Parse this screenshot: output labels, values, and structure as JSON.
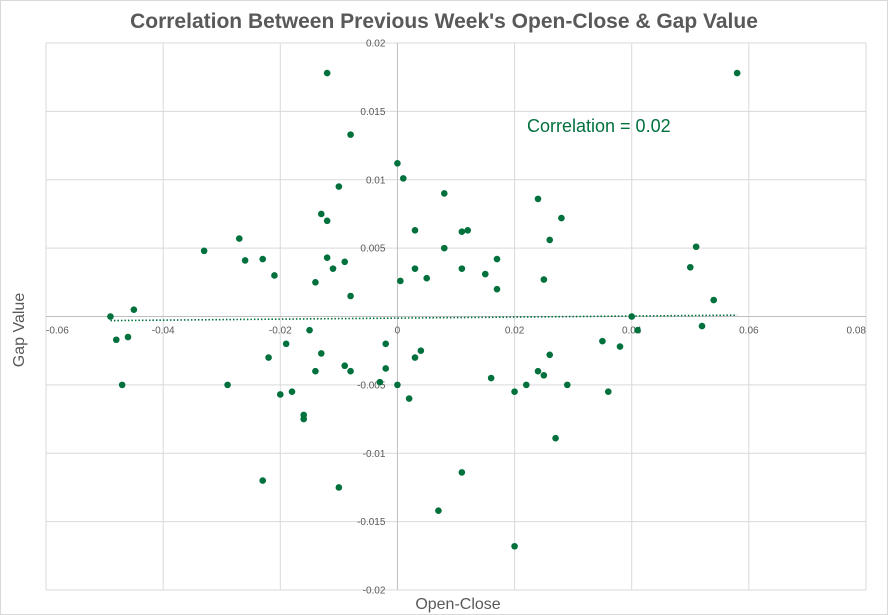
{
  "chart_data": {
    "type": "scatter",
    "title": "Correlation Between Previous Week's Open-Close & Gap Value",
    "xlabel": "Open-Close",
    "ylabel": "Gap Value",
    "xlim": [
      -0.06,
      0.08
    ],
    "ylim": [
      -0.02,
      0.02
    ],
    "x_ticks": [
      -0.06,
      -0.04,
      -0.02,
      0,
      0.02,
      0.04,
      0.06,
      0.08
    ],
    "y_ticks": [
      -0.02,
      -0.015,
      -0.01,
      -0.005,
      0,
      0.005,
      0.01,
      0.015,
      0.02
    ],
    "x_tick_labels": [
      "-0.06",
      "-0.04",
      "-0.02",
      "0",
      "0.02",
      "0.04",
      "0.06",
      "0.08"
    ],
    "y_tick_labels": [
      "-0.02",
      "-0.015",
      "-0.01",
      "-0.005",
      "0",
      "0.005",
      "0.01",
      "0.015",
      "0.02"
    ],
    "grid": true,
    "legend": "none",
    "marker_color": "#00703c",
    "annotation": "Correlation = 0.02",
    "trendline": {
      "style": "dotted",
      "x": [
        -0.049,
        0.058
      ],
      "y": [
        -0.0003,
        0.0001
      ]
    },
    "series": [
      {
        "x": [
          -0.012,
          0.058,
          -0.008,
          0.0,
          -0.01,
          0.001,
          0.008,
          -0.013,
          0.003,
          0.024,
          0.012,
          0.011,
          0.028,
          -0.012,
          0.026,
          -0.027,
          0.05,
          -0.033,
          -0.023,
          -0.026,
          0.008,
          0.051,
          -0.012,
          0.017,
          -0.009,
          -0.014,
          0.003,
          0.0005,
          0.025,
          -0.008,
          -0.02,
          -0.023,
          0.002,
          0.007,
          0.036,
          -0.016,
          0.0,
          -0.045,
          0.054,
          0.02,
          0.027,
          0.04,
          -0.003,
          -0.049,
          0.041,
          -0.047,
          0.022,
          0.038,
          -0.046,
          0.025,
          -0.018,
          0.029,
          0.016,
          -0.029,
          -0.013,
          -0.002,
          0.035,
          -0.016,
          0.003,
          -0.002,
          0.026,
          -0.015,
          -0.019,
          -0.014,
          -0.048,
          0.052,
          0.024,
          -0.022,
          -0.01,
          0.011,
          0.004,
          -0.009,
          0.02,
          -0.021,
          -0.011,
          0.011,
          0.017,
          -0.008,
          0.005,
          0.015
        ],
        "y": [
          0.0178,
          0.0178,
          0.0133,
          0.0112,
          0.0095,
          0.0101,
          0.009,
          0.0075,
          0.0063,
          0.0086,
          0.0063,
          0.0062,
          0.0072,
          0.007,
          0.0056,
          0.0057,
          0.0036,
          0.0048,
          0.0042,
          0.0041,
          0.005,
          0.0051,
          0.0043,
          0.0042,
          0.004,
          0.0025,
          0.0035,
          0.0026,
          0.0027,
          -0.004,
          -0.0057,
          -0.012,
          -0.006,
          -0.0142,
          -0.0055,
          -0.0072,
          -0.005,
          0.0005,
          0.0012,
          -0.0168,
          -0.0089,
          0.0,
          -0.0048,
          0.0,
          -0.001,
          -0.005,
          -0.005,
          -0.0022,
          -0.0015,
          -0.0043,
          -0.0055,
          -0.005,
          -0.0045,
          -0.005,
          -0.0027,
          -0.0038,
          -0.0018,
          -0.0075,
          -0.003,
          -0.002,
          -0.0028,
          -0.001,
          -0.002,
          -0.004,
          -0.0017,
          -0.0007,
          -0.004,
          -0.003,
          -0.0125,
          -0.0114,
          -0.0025,
          -0.0036,
          -0.0055,
          0.003,
          0.0035,
          0.0035,
          0.002,
          0.0015,
          0.0028,
          0.0031
        ]
      }
    ]
  }
}
